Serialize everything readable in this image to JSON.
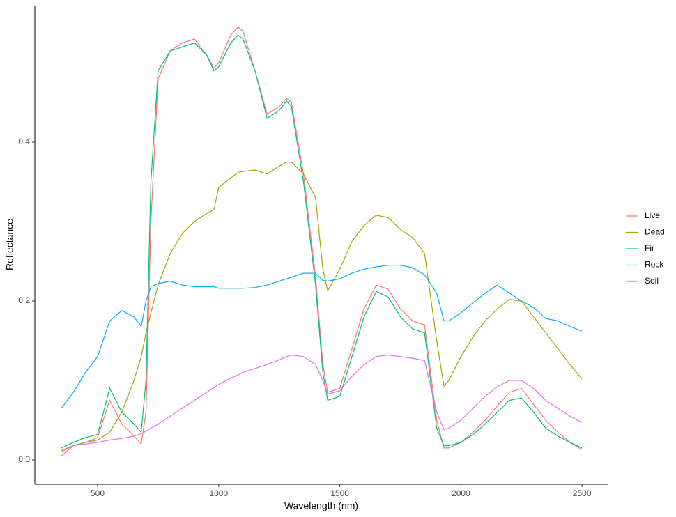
{
  "chart_data": {
    "type": "line",
    "x_label": "Wavelength (nm)",
    "y_label": "Reflectance",
    "x": [
      350,
      400,
      450,
      500,
      550,
      600,
      650,
      680,
      700,
      720,
      750,
      800,
      850,
      900,
      950,
      980,
      1000,
      1050,
      1080,
      1100,
      1150,
      1200,
      1250,
      1280,
      1300,
      1350,
      1400,
      1430,
      1450,
      1500,
      1550,
      1600,
      1650,
      1700,
      1750,
      1800,
      1850,
      1900,
      1930,
      1950,
      2000,
      2050,
      2100,
      2150,
      2200,
      2250,
      2300,
      2350,
      2400,
      2450,
      2500
    ],
    "series": [
      {
        "name": "Live",
        "color": "#F8766D",
        "values": [
          0.01,
          0.018,
          0.022,
          0.028,
          0.075,
          0.045,
          0.03,
          0.02,
          0.06,
          0.3,
          0.48,
          0.515,
          0.525,
          0.53,
          0.51,
          0.493,
          0.5,
          0.535,
          0.545,
          0.54,
          0.49,
          0.435,
          0.445,
          0.455,
          0.45,
          0.36,
          0.23,
          0.12,
          0.085,
          0.09,
          0.14,
          0.19,
          0.22,
          0.215,
          0.19,
          0.175,
          0.17,
          0.05,
          0.015,
          0.015,
          0.022,
          0.035,
          0.05,
          0.068,
          0.085,
          0.09,
          0.07,
          0.05,
          0.035,
          0.022,
          0.013
        ]
      },
      {
        "name": "Dead",
        "color": "#A3A500",
        "values": [
          0.012,
          0.018,
          0.022,
          0.025,
          0.035,
          0.06,
          0.1,
          0.13,
          0.16,
          0.185,
          0.22,
          0.26,
          0.285,
          0.3,
          0.31,
          0.315,
          0.343,
          0.355,
          0.362,
          0.363,
          0.365,
          0.36,
          0.37,
          0.375,
          0.375,
          0.36,
          0.33,
          0.24,
          0.213,
          0.24,
          0.275,
          0.295,
          0.308,
          0.305,
          0.29,
          0.28,
          0.26,
          0.15,
          0.093,
          0.1,
          0.13,
          0.155,
          0.175,
          0.19,
          0.202,
          0.2,
          0.18,
          0.16,
          0.14,
          0.12,
          0.102
        ]
      },
      {
        "name": "Fir",
        "color": "#00BF7D",
        "values": [
          0.015,
          0.022,
          0.028,
          0.032,
          0.09,
          0.06,
          0.045,
          0.035,
          0.1,
          0.35,
          0.49,
          0.515,
          0.52,
          0.525,
          0.51,
          0.49,
          0.495,
          0.525,
          0.535,
          0.53,
          0.49,
          0.43,
          0.44,
          0.452,
          0.445,
          0.35,
          0.22,
          0.11,
          0.075,
          0.08,
          0.13,
          0.18,
          0.212,
          0.205,
          0.18,
          0.165,
          0.16,
          0.04,
          0.018,
          0.018,
          0.022,
          0.032,
          0.045,
          0.06,
          0.075,
          0.078,
          0.06,
          0.04,
          0.03,
          0.022,
          0.015
        ]
      },
      {
        "name": "Rock",
        "color": "#00B0F6",
        "values": [
          0.065,
          0.085,
          0.11,
          0.13,
          0.175,
          0.188,
          0.18,
          0.168,
          0.2,
          0.218,
          0.222,
          0.225,
          0.22,
          0.218,
          0.218,
          0.218,
          0.216,
          0.216,
          0.216,
          0.216,
          0.217,
          0.22,
          0.225,
          0.228,
          0.23,
          0.235,
          0.235,
          0.226,
          0.225,
          0.228,
          0.235,
          0.24,
          0.243,
          0.245,
          0.245,
          0.242,
          0.233,
          0.21,
          0.175,
          0.175,
          0.185,
          0.198,
          0.21,
          0.22,
          0.21,
          0.2,
          0.192,
          0.178,
          0.175,
          0.168,
          0.162
        ]
      },
      {
        "name": "Soil",
        "color": "#E76BF3",
        "values": [
          0.005,
          0.018,
          0.02,
          0.022,
          0.025,
          0.027,
          0.03,
          0.033,
          0.036,
          0.04,
          0.045,
          0.055,
          0.065,
          0.075,
          0.085,
          0.091,
          0.095,
          0.103,
          0.107,
          0.11,
          0.115,
          0.12,
          0.126,
          0.13,
          0.132,
          0.13,
          0.12,
          0.1,
          0.083,
          0.087,
          0.105,
          0.12,
          0.13,
          0.132,
          0.13,
          0.128,
          0.125,
          0.06,
          0.038,
          0.04,
          0.05,
          0.065,
          0.08,
          0.092,
          0.1,
          0.1,
          0.09,
          0.075,
          0.065,
          0.055,
          0.047
        ]
      }
    ],
    "xlim": [
      241,
      2606
    ],
    "ylim": [
      -0.0307,
      0.572
    ],
    "xticks": [
      500,
      1000,
      1500,
      2000,
      2500
    ],
    "yticks": [
      {
        "value": 0,
        "label": "0.0"
      },
      0.2,
      0.4
    ],
    "grid": false,
    "legend": "right"
  }
}
